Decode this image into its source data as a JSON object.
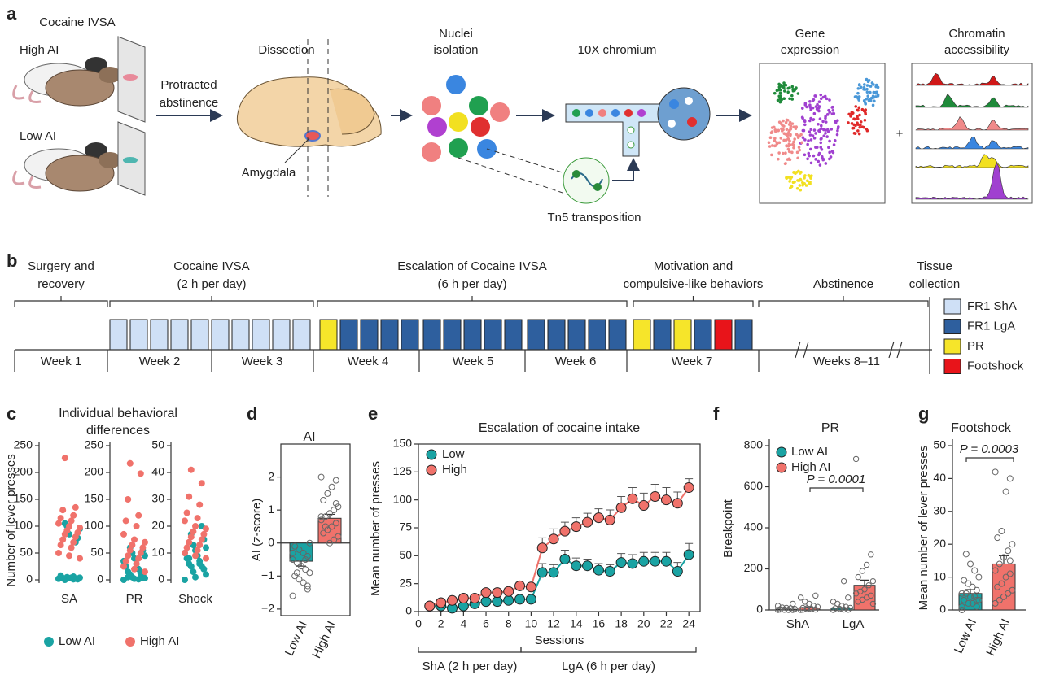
{
  "workflow": {
    "panel": "a",
    "title": "Cocaine IVSA",
    "groups": [
      "High AI",
      "Low AI"
    ],
    "step1": [
      "Protracted",
      "abstinence"
    ],
    "dissection": "Dissection",
    "region": "Amygdala",
    "isolation": [
      "Nuclei",
      "isolation"
    ],
    "platform": "10X chromium",
    "transposition": "Tn5 transposition",
    "outputs": [
      [
        "Gene",
        "expression"
      ],
      [
        "Chromatin",
        "accessibility"
      ]
    ],
    "combine": "+"
  },
  "timeline": {
    "panel": "b",
    "phases": [
      [
        "Surgery and",
        "recovery"
      ],
      [
        "Cocaine IVSA",
        "(2 h per day)"
      ],
      [
        "Escalation of Cocaine IVSA",
        "(6 h per day)"
      ],
      [
        "Motivation and",
        "compulsive-like behaviors"
      ],
      [
        "Abstinence"
      ],
      [
        "Tissue",
        "collection"
      ]
    ],
    "weeks": [
      "Week 1",
      "Week 2",
      "Week 3",
      "Week 4",
      "Week 5",
      "Week 6",
      "Week 7",
      "Weeks 8–11"
    ],
    "legend": [
      {
        "label": "FR1 ShA",
        "color": "#cfe0f6"
      },
      {
        "label": "FR1 LgA",
        "color": "#2e5f9e"
      },
      {
        "label": "PR",
        "color": "#f6e52a"
      },
      {
        "label": "Footshock",
        "color": "#e8141a"
      }
    ]
  },
  "chart_data": [
    {
      "panel": "c",
      "type": "strip",
      "title": [
        "Individual behavioral",
        "differences"
      ],
      "ylabel": "Number of lever presses",
      "series": [
        {
          "name": "Low AI",
          "color": "#1aa3a3"
        },
        {
          "name": "High AI",
          "color": "#f0726b"
        }
      ],
      "subplots": [
        {
          "category": "SA",
          "ylim": [
            0,
            250
          ],
          "yticks": [
            0,
            50,
            100,
            150,
            200,
            250
          ],
          "values": [
            [
              2,
              3,
              4,
              5,
              1,
              0,
              2,
              3,
              6,
              8,
              4,
              2,
              85,
              95,
              100,
              78,
              105,
              70,
              3,
              1
            ],
            [
              227,
              135,
              130,
              120,
              115,
              110,
              105,
              100,
              97,
              92,
              88,
              85,
              80,
              75,
              70,
              65,
              60,
              50,
              45,
              40
            ]
          ]
        },
        {
          "category": "PR",
          "ylim": [
            0,
            250
          ],
          "yticks": [
            0,
            50,
            100,
            150,
            200,
            250
          ],
          "values": [
            [
              0,
              2,
              3,
              5,
              8,
              10,
              12,
              15,
              20,
              25,
              30,
              35,
              40,
              45,
              50,
              55,
              60,
              3,
              5,
              1
            ],
            [
              217,
              198,
              150,
              120,
              110,
              100,
              85,
              75,
              70,
              65,
              60,
              55,
              50,
              45,
              40,
              35,
              30,
              25,
              20,
              15
            ]
          ]
        },
        {
          "category": "Shock",
          "ylim": [
            0,
            50
          ],
          "yticks": [
            0,
            10,
            20,
            30,
            40,
            50
          ],
          "values": [
            [
              0,
              1,
              2,
              3,
              4,
              5,
              5,
              6,
              7,
              8,
              9,
              10,
              11,
              12,
              13,
              15,
              17,
              20,
              8,
              6
            ],
            [
              41,
              36,
              31,
              28,
              25,
              23,
              22,
              20,
              19,
              18,
              17,
              16,
              15,
              14,
              13,
              12,
              11,
              10,
              9,
              8
            ]
          ]
        }
      ]
    },
    {
      "panel": "d",
      "type": "bar_points",
      "title": "AI",
      "ylabel": "AI (z-score)",
      "categories": [
        "Low AI",
        "High AI"
      ],
      "colors": [
        "#1aa3a3",
        "#f0726b"
      ],
      "values": [
        -0.55,
        0.75
      ],
      "errors": [
        0.15,
        0.12
      ],
      "points": [
        [
          -1.6,
          -1.4,
          -1.2,
          -1.1,
          -1.0,
          -0.9,
          -0.8,
          -0.7,
          -0.6,
          -0.5,
          -0.4,
          -0.3,
          -0.2,
          -0.1,
          0,
          -0.5,
          -0.7,
          -0.9,
          -0.3,
          -1.3
        ],
        [
          2.0,
          1.9,
          1.7,
          1.5,
          1.3,
          1.1,
          1.0,
          0.9,
          0.8,
          0.7,
          0.6,
          0.5,
          0.4,
          0.3,
          0.2,
          0.1,
          0.0,
          0.5,
          0.8,
          1.2
        ]
      ],
      "ylim": [
        -2.2,
        3
      ],
      "yticks": [
        {
          "value": -2,
          "label": "−2"
        },
        {
          "value": -1,
          "label": "−1"
        },
        0,
        1,
        2
      ]
    },
    {
      "panel": "e",
      "type": "line",
      "title": "Escalation of cocaine intake",
      "xlabel": "Sessions",
      "ylabel": "Mean number of presses",
      "x": [
        1,
        2,
        3,
        4,
        5,
        6,
        7,
        8,
        9,
        10,
        11,
        12,
        13,
        14,
        15,
        16,
        17,
        18,
        19,
        20,
        21,
        22,
        23,
        24
      ],
      "series": [
        {
          "name": "Low",
          "color": "#1aa3a3",
          "values": [
            5,
            5,
            3,
            5,
            7,
            9,
            9,
            10,
            11,
            11,
            35,
            35,
            47,
            41,
            41,
            37,
            36,
            44,
            43,
            45,
            45,
            45,
            36,
            51
          ],
          "errors": [
            1,
            1,
            1,
            1,
            1,
            1,
            1,
            1,
            1,
            1,
            8,
            7,
            8,
            7,
            6,
            6,
            6,
            8,
            8,
            8,
            8,
            8,
            8,
            10
          ]
        },
        {
          "name": "High",
          "color": "#f0726b",
          "values": [
            5,
            8,
            10,
            12,
            12,
            17,
            17,
            18,
            23,
            22,
            57,
            65,
            72,
            76,
            80,
            84,
            82,
            93,
            101,
            95,
            103,
            100,
            97,
            111
          ],
          "errors": [
            1,
            2,
            2,
            2,
            2,
            3,
            3,
            3,
            3,
            3,
            9,
            9,
            8,
            8,
            8,
            8,
            9,
            10,
            10,
            11,
            11,
            11,
            10,
            8
          ]
        }
      ],
      "xlim": [
        0,
        25
      ],
      "xticks": [
        0,
        2,
        4,
        6,
        8,
        10,
        12,
        14,
        16,
        18,
        20,
        22,
        24
      ],
      "ylim": [
        0,
        150
      ],
      "yticks": [
        0,
        25,
        50,
        75,
        100,
        125,
        150
      ],
      "brackets": [
        "ShA (2 h per day)",
        "LgA (6 h per day)"
      ]
    },
    {
      "panel": "f",
      "type": "grouped_bar_points",
      "title": "PR",
      "ylabel": "Breakpoint",
      "categories": [
        "ShA",
        "LgA"
      ],
      "series": [
        {
          "name": "Low AI",
          "color": "#1aa3a3",
          "values": [
            3,
            8
          ],
          "errors": [
            1,
            3
          ],
          "points": [
            [
              0,
              0,
              1,
              2,
              3,
              5,
              8,
              10,
              12,
              20,
              30,
              0,
              1,
              2
            ],
            [
              0,
              1,
              2,
              5,
              8,
              10,
              15,
              20,
              30,
              40,
              60,
              140,
              5
            ]
          ]
        },
        {
          "name": "High AI",
          "color": "#f0726b",
          "values": [
            10,
            120
          ],
          "errors": [
            2,
            25
          ],
          "points": [
            [
              0,
              2,
              5,
              8,
              10,
              15,
              20,
              30,
              40,
              60,
              70,
              5,
              3,
              1
            ],
            [
              735,
              270,
              220,
              190,
              160,
              140,
              120,
              100,
              90,
              80,
              70,
              60,
              50,
              40,
              30
            ]
          ]
        }
      ],
      "ylim": [
        0,
        800
      ],
      "yticks": [
        0,
        200,
        400,
        600,
        800
      ],
      "annotation": "P = 0.0001"
    },
    {
      "panel": "g",
      "type": "bar_points",
      "title": "Footshock",
      "ylabel": "Mean number of lever presses",
      "categories": [
        "Low AI",
        "High AI"
      ],
      "colors": [
        "#1aa3a3",
        "#f0726b"
      ],
      "values": [
        5,
        14
      ],
      "errors": [
        1.2,
        2.5
      ],
      "points": [
        [
          0,
          1,
          2,
          2,
          3,
          3,
          4,
          4,
          5,
          5,
          6,
          7,
          8,
          9,
          10,
          12,
          14,
          17,
          1,
          3
        ],
        [
          42,
          40,
          36,
          24,
          22,
          20,
          18,
          16,
          14,
          12,
          11,
          10,
          8,
          7,
          6,
          5,
          4,
          3,
          2,
          15
        ]
      ],
      "ylim": [
        0,
        50
      ],
      "yticks": [
        0,
        10,
        20,
        30,
        40,
        50
      ],
      "annotation": "P = 0.0003"
    }
  ]
}
